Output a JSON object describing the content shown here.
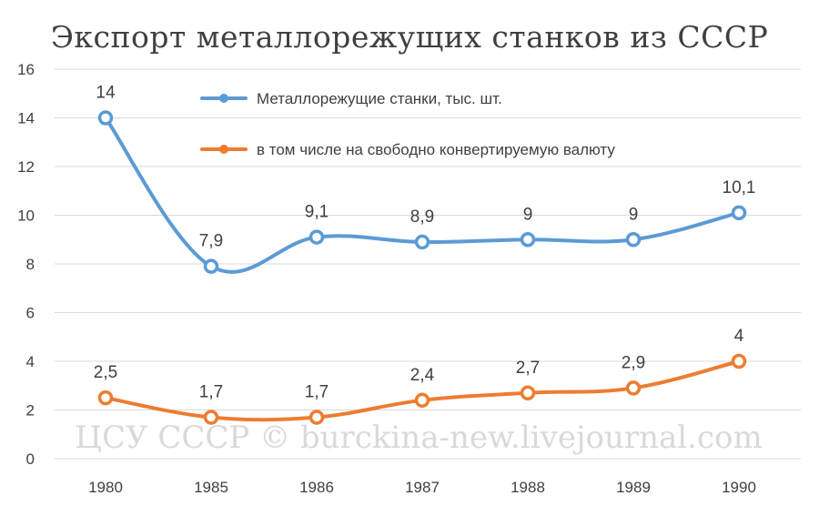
{
  "chart_data": {
    "type": "line",
    "title": "Экспорт металлорежущих станков из СССР",
    "watermark": "ЦСУ СССР © burckina-new.livejournal.com",
    "categories": [
      "1980",
      "1985",
      "1986",
      "1987",
      "1988",
      "1989",
      "1990"
    ],
    "ylim": [
      0,
      16
    ],
    "yticks": [
      "0",
      "2",
      "4",
      "6",
      "8",
      "10",
      "12",
      "14",
      "16"
    ],
    "grid": true,
    "legend_position": "top-center",
    "series": [
      {
        "name": "Металлорежущие станки, тыс. шт.",
        "values": [
          14,
          7.9,
          9.1,
          8.9,
          9,
          9,
          10.1
        ],
        "labels": [
          "14",
          "7,9",
          "9,1",
          "8,9",
          "9",
          "9",
          "10,1"
        ],
        "color": "#5b9bd5"
      },
      {
        "name": "в том числе на свободно конвертируемую валюту",
        "values": [
          2.5,
          1.7,
          1.7,
          2.4,
          2.7,
          2.9,
          4
        ],
        "labels": [
          "2,5",
          "1,7",
          "1,7",
          "2,4",
          "2,7",
          "2,9",
          "4"
        ],
        "color": "#ed7d31"
      }
    ]
  }
}
